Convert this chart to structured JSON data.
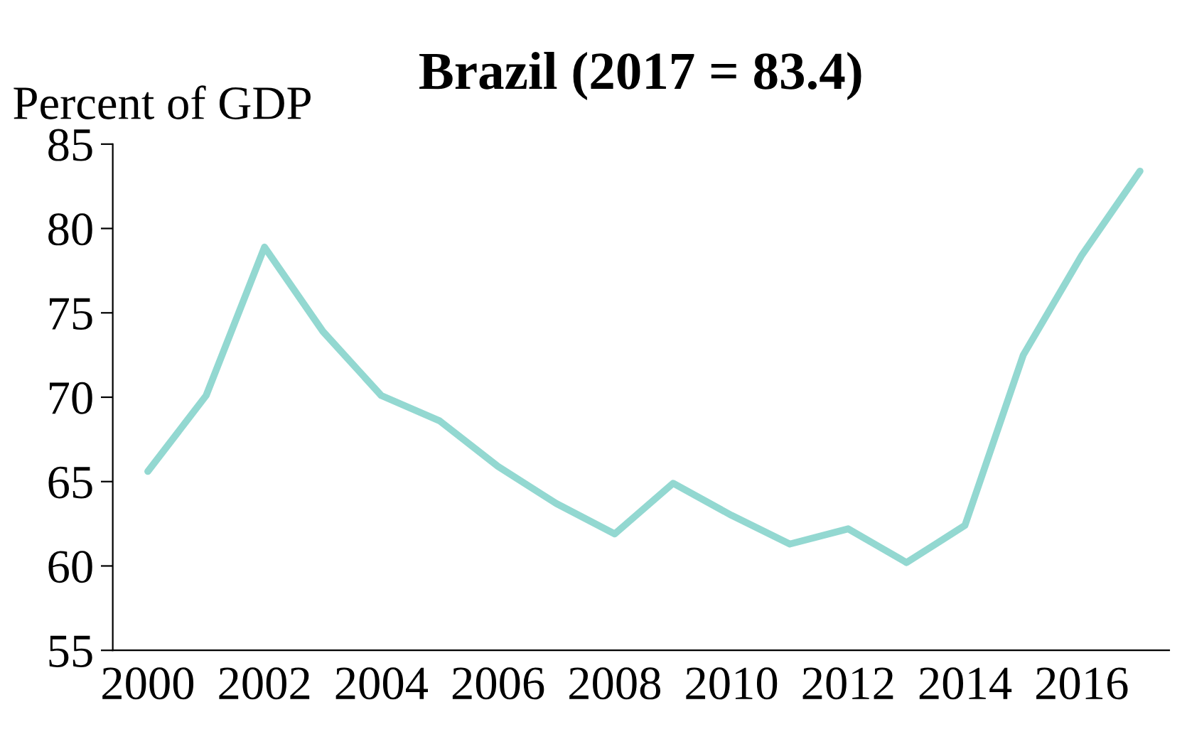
{
  "chart_data": {
    "type": "line",
    "title": "Brazil (2017 = 83.4)",
    "ylabel": "Percent of GDP",
    "categories": [
      "2000",
      null,
      "2002",
      null,
      "2004",
      null,
      "2006",
      null,
      "2008",
      null,
      "2010",
      null,
      "2012",
      null,
      "2014",
      null,
      "2016",
      null
    ],
    "series": [
      {
        "color": "#93d8d1",
        "values": [
          65.6,
          70.1,
          78.9,
          73.9,
          70.1,
          68.6,
          65.9,
          63.7,
          61.9,
          64.9,
          63.0,
          61.3,
          62.2,
          60.2,
          62.4,
          72.5,
          78.4,
          83.4
        ]
      }
    ],
    "ylim": [
      55,
      85
    ],
    "yticks": [
      55,
      60,
      65,
      70,
      75,
      80,
      85
    ],
    "grid": false,
    "legend": false
  }
}
